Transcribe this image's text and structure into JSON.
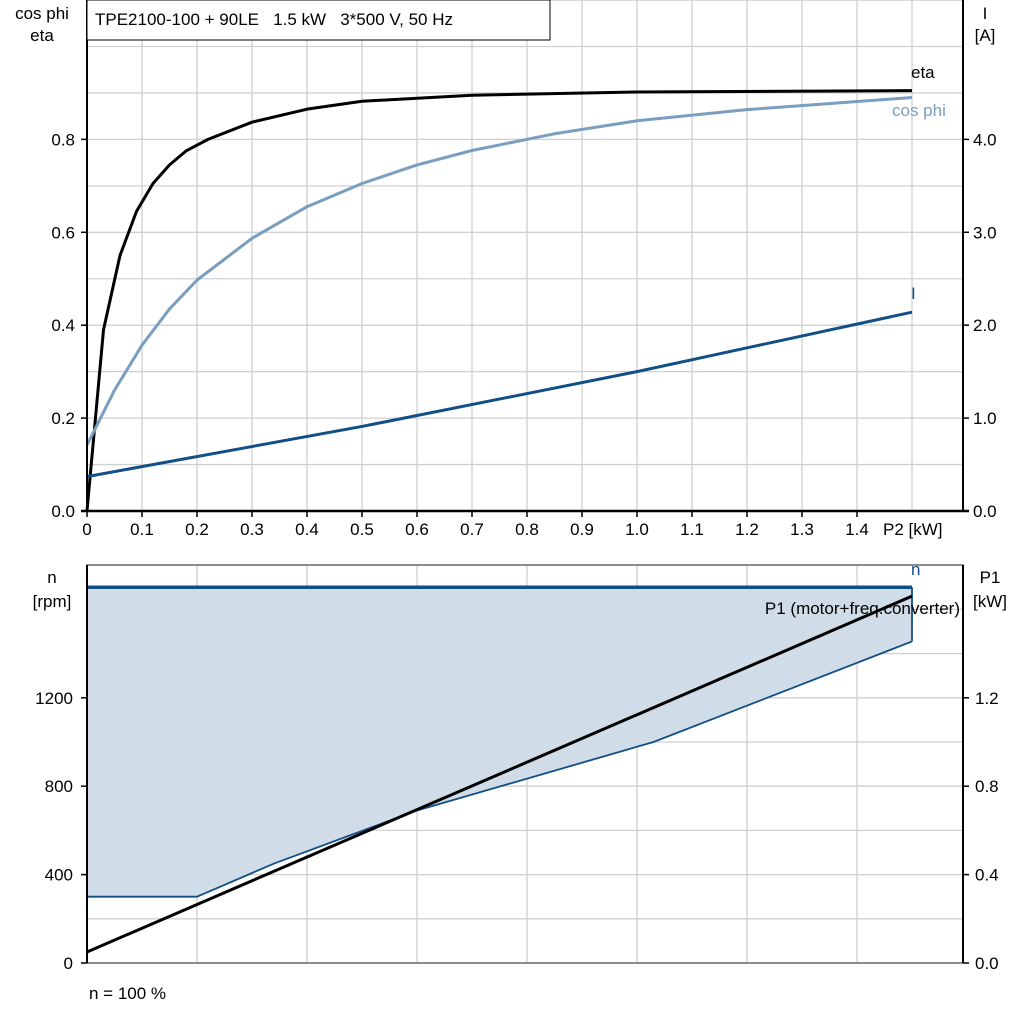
{
  "chart_data": [
    {
      "type": "line",
      "title": "TPE2100-100 + 90LE   1.5 kW   3*500 V, 50 Hz",
      "xlabel": "P2 [kW]",
      "ylabel": [
        "cos phi",
        "eta"
      ],
      "y2label": [
        "I",
        "[A]"
      ],
      "xlim": [
        0,
        1.5
      ],
      "ylim": [
        0,
        1.1
      ],
      "y2lim": [
        0,
        5.5
      ],
      "grid": true,
      "x_ticks": [
        "0",
        "0.1",
        "0.2",
        "0.3",
        "0.4",
        "0.5",
        "0.6",
        "0.7",
        "0.8",
        "0.9",
        "1.0",
        "1.1",
        "1.2",
        "1.3",
        "1.4"
      ],
      "y_ticks": [
        "0.0",
        "0.2",
        "0.4",
        "0.6",
        "0.8"
      ],
      "y2_ticks": [
        "0.0",
        "1.0",
        "2.0",
        "3.0",
        "4.0"
      ],
      "series": [
        {
          "name": "eta",
          "axis": "left",
          "color": "#000000",
          "x": [
            0,
            0.03,
            0.06,
            0.09,
            0.12,
            0.15,
            0.18,
            0.22,
            0.3,
            0.4,
            0.5,
            0.7,
            1.0,
            1.5
          ],
          "y": [
            0,
            0.39,
            0.55,
            0.645,
            0.705,
            0.745,
            0.775,
            0.8,
            0.837,
            0.865,
            0.882,
            0.895,
            0.902,
            0.905
          ]
        },
        {
          "name": "cos phi",
          "axis": "left",
          "color": "#7a9ebf",
          "x": [
            0,
            0.05,
            0.1,
            0.15,
            0.2,
            0.3,
            0.4,
            0.5,
            0.6,
            0.7,
            0.85,
            1.0,
            1.2,
            1.5
          ],
          "y": [
            0.142,
            0.26,
            0.357,
            0.435,
            0.497,
            0.587,
            0.655,
            0.705,
            0.745,
            0.776,
            0.812,
            0.84,
            0.864,
            0.89
          ]
        },
        {
          "name": "I",
          "axis": "right",
          "color": "#124f87",
          "x": [
            0,
            0.5,
            1.0,
            1.5
          ],
          "y": [
            0.37,
            0.91,
            1.5,
            2.14
          ]
        }
      ]
    },
    {
      "type": "area",
      "xlabel": "",
      "ylabel": [
        "n",
        "[rpm]"
      ],
      "y2label": [
        "P1",
        "[kW]"
      ],
      "xlim": [
        0,
        1.6
      ],
      "ylim": [
        0,
        1800
      ],
      "y2lim": [
        0,
        1.8
      ],
      "grid": true,
      "y_ticks": [
        "0",
        "400",
        "800",
        "1200"
      ],
      "y2_ticks": [
        "0.0",
        "0.4",
        "0.8",
        "1.2"
      ],
      "footer": "n = 100 %",
      "speed_range": {
        "name": "n",
        "color": "#124f87",
        "fill": "#d0dce8",
        "upper_x": [
          0,
          1.5
        ],
        "upper_y": [
          1700,
          1700
        ],
        "lower_x": [
          0,
          0.2,
          0.34,
          0.6,
          1.03,
          1.5
        ],
        "lower_y": [
          300,
          300,
          450,
          690,
          1000,
          1455
        ]
      },
      "series": [
        {
          "name": "P1 (motor+freq.converter)",
          "axis": "right",
          "color": "#000000",
          "x": [
            0,
            1.5
          ],
          "y": [
            0.05,
            1.66
          ]
        }
      ]
    }
  ]
}
